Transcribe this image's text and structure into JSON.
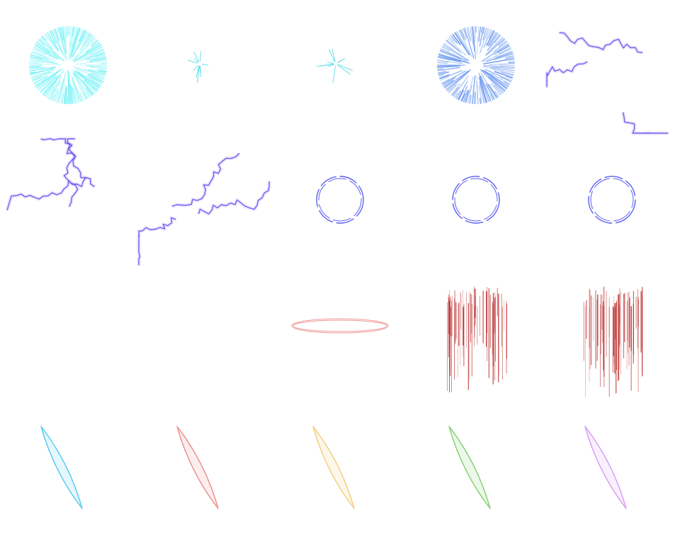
{
  "sprite_sheet": {
    "columns": 5,
    "rows": 4,
    "frames": [
      {
        "id": "burst-ring-cyan",
        "kind": "burst-ring",
        "color": "#7ff3f6",
        "density": 1.0
      },
      {
        "id": "spark-cyan-a",
        "kind": "spark",
        "color": "#3fd7e6"
      },
      {
        "id": "spark-cyan-b",
        "kind": "spark",
        "color": "#3fd7e6"
      },
      {
        "id": "burst-ring-blue",
        "kind": "burst-ring",
        "color": "#6f9bf0",
        "density": 0.8
      },
      {
        "id": "lightning-a",
        "kind": "lightning",
        "color": "#6d4ef0"
      },
      {
        "id": "lightning-b",
        "kind": "lightning",
        "color": "#6d4ef0"
      },
      {
        "id": "lightning-c",
        "kind": "lightning",
        "color": "#6d4ef0"
      },
      {
        "id": "dashed-ring-a",
        "kind": "dashed-ring",
        "color": "#4a4ef0",
        "phase": 0
      },
      {
        "id": "dashed-ring-b",
        "kind": "dashed-ring",
        "color": "#4a4ef0",
        "phase": 18
      },
      {
        "id": "dashed-ring-c",
        "kind": "dashed-ring",
        "color": "#4a4ef0",
        "phase": 36
      },
      {
        "id": "empty-a",
        "kind": "empty"
      },
      {
        "id": "empty-b",
        "kind": "empty"
      },
      {
        "id": "halo-ellipse-red",
        "kind": "halo-ellipse",
        "color": "#e88080"
      },
      {
        "id": "blood-rain-a",
        "kind": "rain",
        "color": "#b82020"
      },
      {
        "id": "blood-rain-b",
        "kind": "rain",
        "color": "#b82020"
      },
      {
        "id": "slash-cyan",
        "kind": "slash",
        "color": "#4fcaf0"
      },
      {
        "id": "slash-red",
        "kind": "slash",
        "color": "#ee8a8a"
      },
      {
        "id": "slash-yellow",
        "kind": "slash",
        "color": "#f3cc7a"
      },
      {
        "id": "slash-green",
        "kind": "slash",
        "color": "#7fcf6e"
      },
      {
        "id": "slash-purple",
        "kind": "slash",
        "color": "#d49af4"
      }
    ]
  }
}
